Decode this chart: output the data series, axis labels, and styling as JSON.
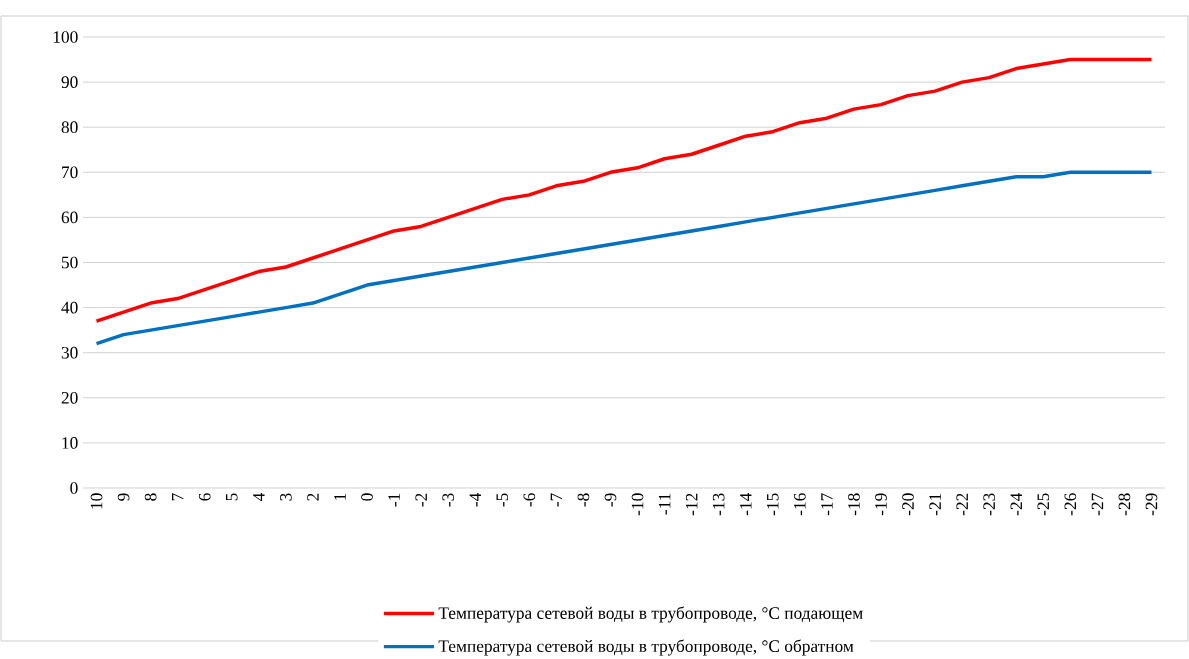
{
  "chart_data": {
    "type": "line",
    "categories": [
      "10",
      "9",
      "8",
      "7",
      "6",
      "5",
      "4",
      "3",
      "2",
      "1",
      "0",
      "-1",
      "-2",
      "-3",
      "-4",
      "-5",
      "-6",
      "-7",
      "-8",
      "-9",
      "-10",
      "-11",
      "-12",
      "-13",
      "-14",
      "-15",
      "-16",
      "-17",
      "-18",
      "-19",
      "-20",
      "-21",
      "-22",
      "-23",
      "-24",
      "-25",
      "-26",
      "-27",
      "-28",
      "-29"
    ],
    "series": [
      {
        "name": "Температура сетевой воды в трубопроводе, °С подающем",
        "color": "#ff0000",
        "values": [
          37,
          39,
          41,
          42,
          44,
          46,
          48,
          49,
          51,
          53,
          55,
          57,
          58,
          60,
          62,
          64,
          65,
          67,
          68,
          70,
          71,
          73,
          74,
          76,
          78,
          79,
          81,
          82,
          84,
          85,
          87,
          88,
          90,
          91,
          93,
          94,
          95,
          95,
          95,
          95
        ]
      },
      {
        "name": "Температура сетевой воды в трубопроводе, °С обратном",
        "color": "#0070c0",
        "values": [
          32,
          34,
          35,
          36,
          37,
          38,
          39,
          40,
          41,
          43,
          45,
          46,
          47,
          48,
          49,
          50,
          51,
          52,
          53,
          54,
          55,
          56,
          57,
          58,
          59,
          60,
          61,
          62,
          63,
          64,
          65,
          66,
          67,
          68,
          69,
          69,
          70,
          70,
          70,
          70
        ]
      }
    ],
    "ylim": [
      0,
      100
    ],
    "yticks": [
      0,
      10,
      20,
      30,
      40,
      50,
      60,
      70,
      80,
      90,
      100
    ],
    "grid": "y",
    "legend": "bottom",
    "marker": "none",
    "line_style": "solid"
  }
}
